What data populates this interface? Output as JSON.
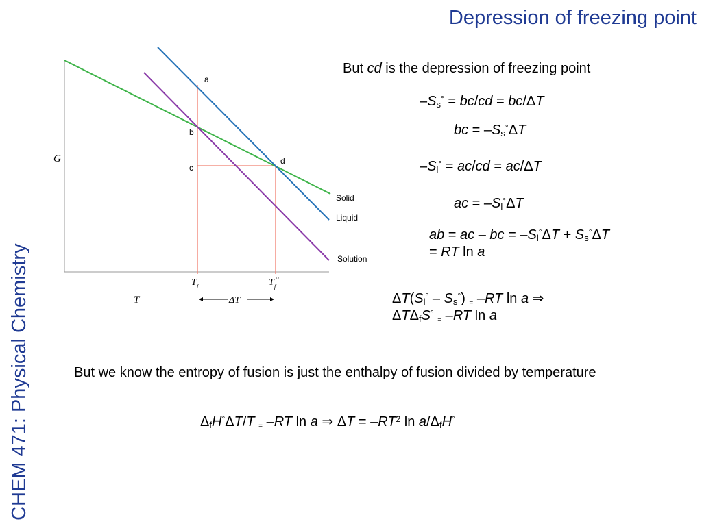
{
  "slide": {
    "title": "Depression of freezing point",
    "sidebar": "CHEM 471: Physical Chemistry"
  },
  "diagram": {
    "axis_y_label": "G",
    "axis_x_label": "T",
    "points": {
      "a": "a",
      "b": "b",
      "c": "c",
      "d": "d"
    },
    "lines": [
      {
        "name": "Solid",
        "color": "#3fb44a"
      },
      {
        "name": "Liquid",
        "color": "#2673b8"
      },
      {
        "name": "Solution",
        "color": "#8a3aa8"
      }
    ],
    "guide_color": "#f08070",
    "tf": "T",
    "tf_sub": "f",
    "tf0": "T",
    "tf0_sub": "f",
    "tf0_sup": "○",
    "delta_t": "ΔT"
  },
  "text": {
    "intro_pre": "But ",
    "intro_var": "cd",
    "intro_post": " is the depression of freezing point",
    "final_para": "But we know the entropy of fusion is just the enthalpy of fusion divided by temperature"
  },
  "colors": {
    "title": "#1f3a93",
    "solid": "#3fb44a",
    "liquid": "#2673b8",
    "solution": "#8a3aa8",
    "guide": "#f08070"
  }
}
